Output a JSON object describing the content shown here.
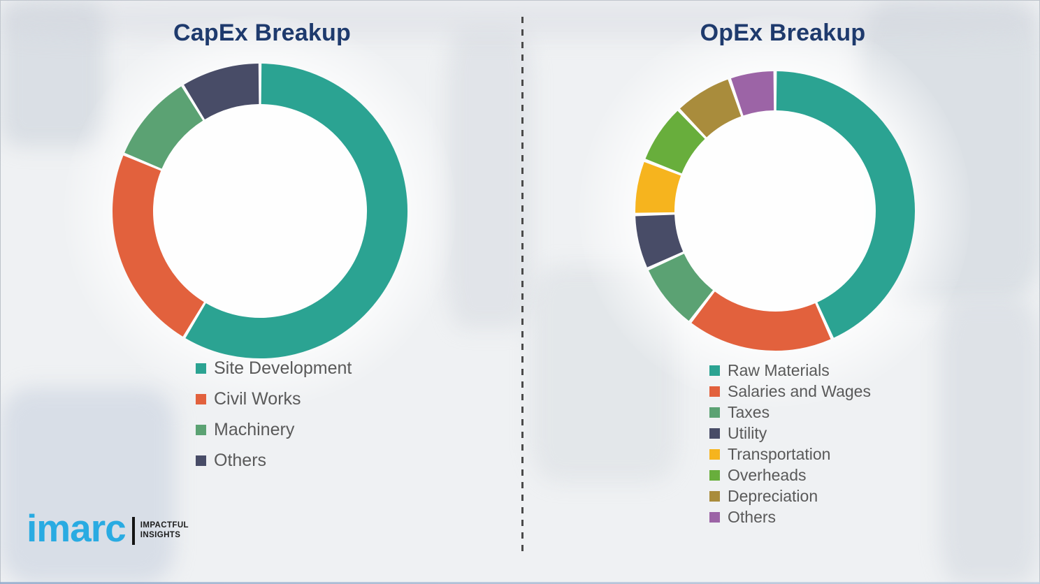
{
  "page": {
    "background_color": "#eff1f3",
    "divider_style": "vertical-dashed-line",
    "divider_color": "#4a4a4a",
    "title_color": "#1e3a6d",
    "legend_text_color": "#595959",
    "bottom_edge_color": "#8fa9cc"
  },
  "chart_data": [
    {
      "id": "capex",
      "type": "pie",
      "style": "donut",
      "title": "CapEx Breakup",
      "categories": [
        "Site Development",
        "Civil Works",
        "Machinery",
        "Others"
      ],
      "values": [
        58.6,
        22.7,
        9.9,
        8.8
      ],
      "value_unit": "percent-share-estimated-from-arc-angles",
      "colors": [
        "#2ba392",
        "#e2613d",
        "#5ba273",
        "#484c67"
      ],
      "start_angle": "12-oclock",
      "direction": "clockwise",
      "data_labels": "none",
      "legend_position": "below-chart-left"
    },
    {
      "id": "opex",
      "type": "pie",
      "style": "donut",
      "title": "OpEx Breakup",
      "categories": [
        "Raw Materials",
        "Salaries and Wages",
        "Taxes",
        "Utility",
        "Transportation",
        "Overheads",
        "Depreciation",
        "Others"
      ],
      "values": [
        43.3,
        17.1,
        7.8,
        6.4,
        6.3,
        7.0,
        6.8,
        5.3
      ],
      "value_unit": "percent-share-estimated-from-arc-angles",
      "colors": [
        "#2ba392",
        "#e2613d",
        "#5ba273",
        "#484c67",
        "#f6b41e",
        "#68ae3c",
        "#a98c3c",
        "#9c64a6"
      ],
      "start_angle": "12-oclock",
      "direction": "clockwise",
      "data_labels": "none",
      "legend_position": "below-chart-left"
    }
  ],
  "logo": {
    "brand": "imarc",
    "tagline_line1": "IMPACTFUL",
    "tagline_line2": "INSIGHTS",
    "brand_color": "#29abe2",
    "tagline_color": "#1b1b1b"
  }
}
